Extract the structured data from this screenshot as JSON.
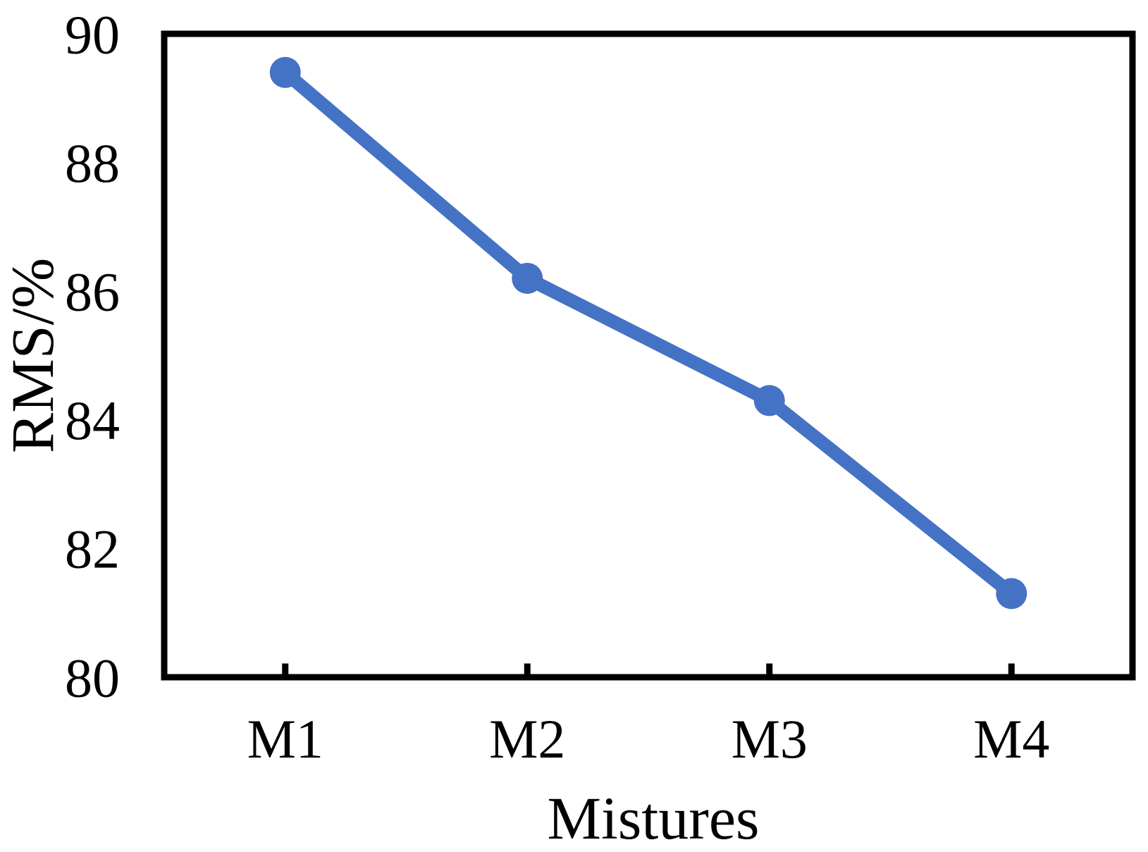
{
  "chart_data": {
    "type": "line",
    "title": "",
    "xlabel": "Mistures",
    "ylabel": "RMS/%",
    "categories": [
      "M1",
      "M2",
      "M3",
      "M4"
    ],
    "series": [
      {
        "name": "RMS",
        "values": [
          89.4,
          86.2,
          84.3,
          81.3
        ]
      }
    ],
    "ylim": [
      80,
      90
    ],
    "yticks": [
      80,
      82,
      84,
      86,
      88,
      90
    ],
    "ytick_labels": [
      "80",
      "82",
      "84",
      "86",
      "88",
      "90"
    ],
    "grid": "off",
    "legend": "none",
    "marker": "circle",
    "line_color": "#4472C4",
    "frame_color": "#000000",
    "background_color": "#FFFFFF"
  }
}
